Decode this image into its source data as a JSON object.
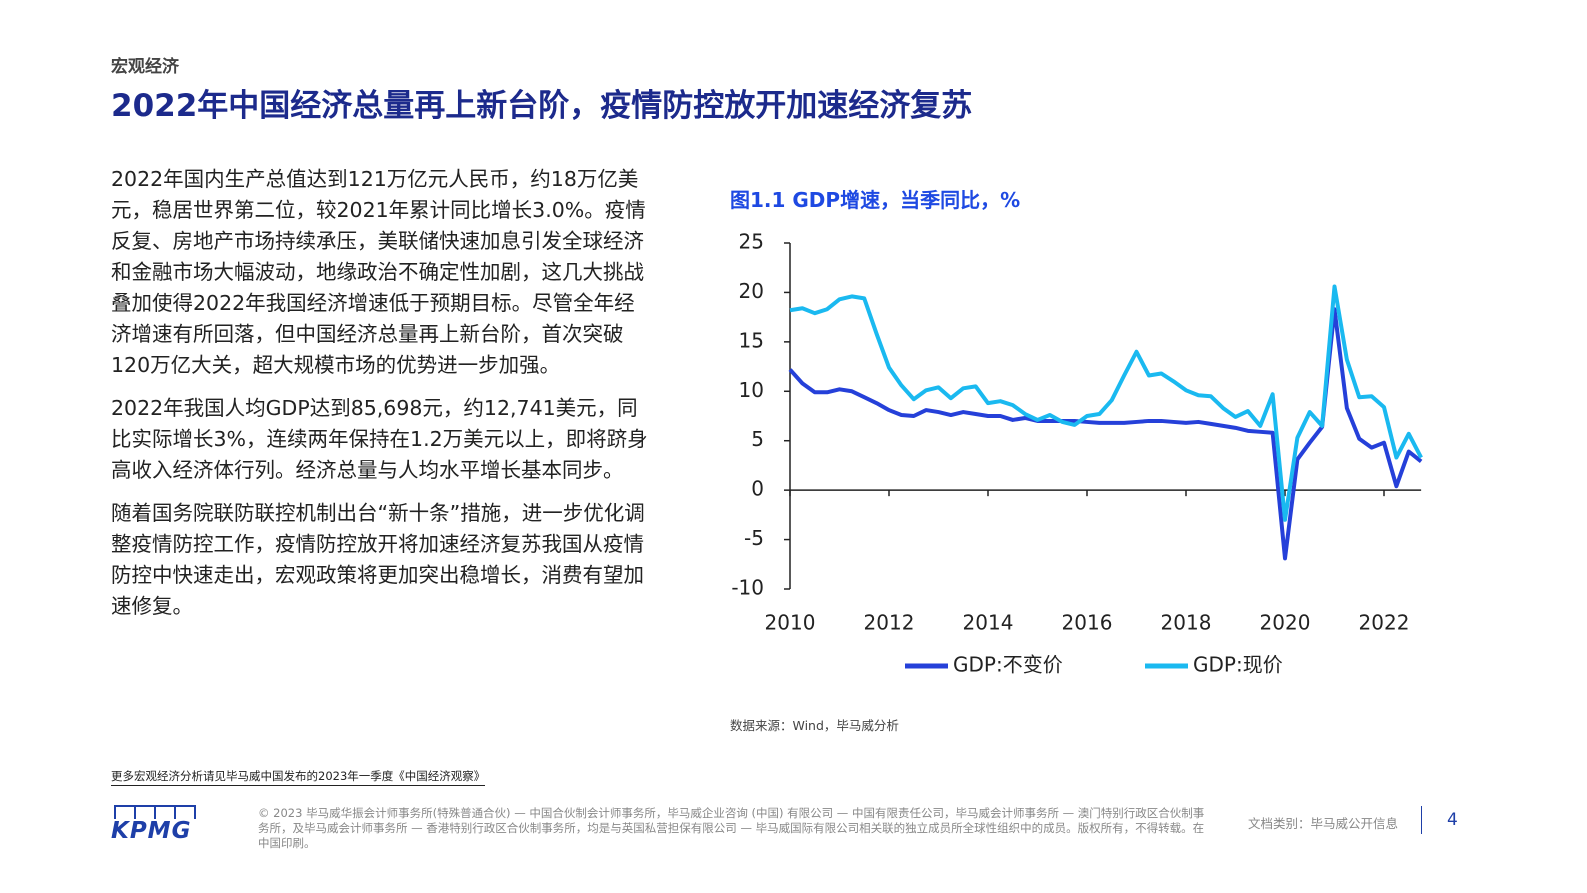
{
  "header": {
    "section": "宏观经济",
    "title": "2022年中国经济总量再上新台阶，疫情防控放开加速经济复苏"
  },
  "paragraphs": [
    "2022年国内生产总值达到121万亿元人民币，约18万亿美元，稳居世界第二位，较2021年累计同比增长3.0%。疫情反复、房地产市场持续承压，美联储快速加息引发全球经济和金融市场大幅波动，地缘政治不确定性加剧，这几大挑战叠加使得2022年我国经济增速低于预期目标。尽管全年经济增速有所回落，但中国经济总量再上新台阶，首次突破120万亿大关，超大规模市场的优势进一步加强。",
    "2022年我国人均GDP达到85,698元，约12,741美元，同比实际增长3%，连续两年保持在1.2万美元以上，即将跻身高收入经济体行列。经济总量与人均水平增长基本同步。",
    "随着国务院联防联控机制出台“新十条”措施，进一步优化调整疫情防控工作，疫情防控放开将加速经济复苏我国从疫情防控中快速走出，宏观政策将更加突出稳增长，消费有望加速修复。"
  ],
  "chart_data": {
    "type": "line",
    "title": "图1.1 GDP增速，当季同比，%",
    "source": "数据来源：Wind，毕马威分析",
    "x": [
      2010,
      2010.25,
      2010.5,
      2010.75,
      2011,
      2011.25,
      2011.5,
      2011.75,
      2012,
      2012.25,
      2012.5,
      2012.75,
      2013,
      2013.25,
      2013.5,
      2013.75,
      2014,
      2014.25,
      2014.5,
      2014.75,
      2015,
      2015.25,
      2015.5,
      2015.75,
      2016,
      2016.25,
      2016.5,
      2016.75,
      2017,
      2017.25,
      2017.5,
      2017.75,
      2018,
      2018.25,
      2018.5,
      2018.75,
      2019,
      2019.25,
      2019.5,
      2019.75,
      2020,
      2020.25,
      2020.5,
      2020.75,
      2021,
      2021.25,
      2021.5,
      2021.75,
      2022,
      2022.25,
      2022.5,
      2022.75
    ],
    "series": [
      {
        "name": "GDP:不变价",
        "color": "#2540d9",
        "values": [
          12.2,
          10.8,
          9.9,
          9.9,
          10.2,
          10.0,
          9.4,
          8.8,
          8.1,
          7.6,
          7.5,
          8.1,
          7.9,
          7.6,
          7.9,
          7.7,
          7.5,
          7.5,
          7.1,
          7.3,
          7.0,
          7.0,
          7.0,
          7.0,
          6.9,
          6.8,
          6.8,
          6.8,
          6.9,
          7.0,
          7.0,
          6.9,
          6.8,
          6.9,
          6.7,
          6.5,
          6.3,
          6.0,
          5.9,
          5.8,
          -6.9,
          3.1,
          4.8,
          6.4,
          18.3,
          8.3,
          5.2,
          4.3,
          4.8,
          0.4,
          3.9,
          2.9
        ]
      },
      {
        "name": "GDP:现价",
        "color": "#1ab9f0",
        "values": [
          18.2,
          18.4,
          17.9,
          18.3,
          19.3,
          19.6,
          19.4,
          15.8,
          12.4,
          10.6,
          9.2,
          10.1,
          10.4,
          9.3,
          10.3,
          10.5,
          8.8,
          9.0,
          8.6,
          7.7,
          7.1,
          7.6,
          6.9,
          6.6,
          7.5,
          7.7,
          9.1,
          11.6,
          14.0,
          11.6,
          11.8,
          11.0,
          10.1,
          9.6,
          9.5,
          8.3,
          7.4,
          8.0,
          6.5,
          9.7,
          -3.0,
          5.3,
          7.9,
          6.5,
          20.6,
          13.2,
          9.4,
          9.5,
          8.4,
          3.3,
          5.7,
          3.3
        ]
      }
    ],
    "xlim": [
      2010,
      2022.75
    ],
    "xticks": [
      2010,
      2012,
      2014,
      2016,
      2018,
      2020,
      2022
    ],
    "ylim": [
      -10,
      25
    ],
    "yticks": [
      -10,
      -5,
      0,
      5,
      10,
      15,
      20,
      25
    ],
    "legend": "bottom"
  },
  "footer": {
    "link": "更多宏观经济分析请见毕马威中国发布的2023年一季度《中国经济观察》",
    "logo": "KPMG",
    "legal": "© 2023 毕马威华振会计师事务所(特殊普通合伙) — 中国合伙制会计师事务所，毕马威企业咨询 (中国) 有限公司 — 中国有限责任公司，毕马威会计师事务所 — 澳门特别行政区合伙制事务所，及毕马威会计师事务所 — 香港特别行政区合伙制事务所，均是与英国私营担保有限公司 — 毕马威国际有限公司相关联的独立成员所全球性组织中的成员。版权所有，不得转载。在中国印刷。",
    "category": "文档类别：毕马威公开信息",
    "page": "4"
  }
}
